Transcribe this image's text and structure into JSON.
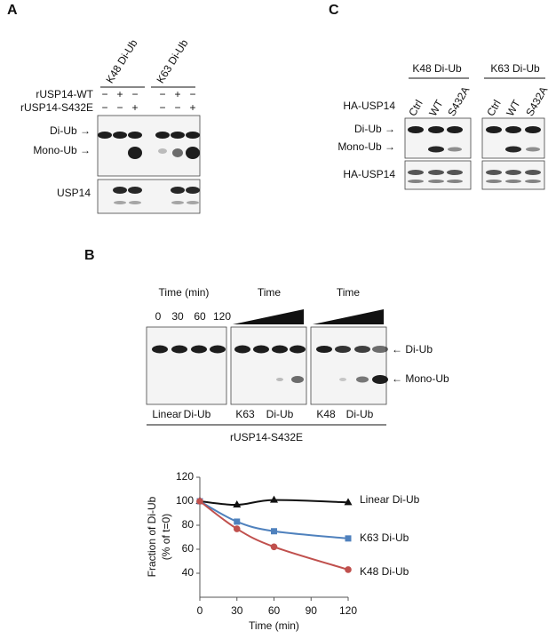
{
  "panel_a": {
    "label": "A",
    "columns": [
      "K48 Di-Ub",
      "K63 Di-Ub"
    ],
    "rows": [
      {
        "name": "rUSP14-WT",
        "signs": [
          "−",
          "+",
          "−",
          "−",
          "+",
          "−"
        ]
      },
      {
        "name": "rUSP14-S432E",
        "signs": [
          "−",
          "−",
          "+",
          "−",
          "−",
          "+"
        ]
      }
    ],
    "blot_labels": [
      "Di-Ub →",
      "Mono-Ub →",
      "USP14"
    ]
  },
  "panel_c": {
    "label": "C",
    "columns": [
      "K48 Di-Ub",
      "K63 Di-Ub"
    ],
    "row_label": "HA-USP14",
    "lanes": [
      "Ctrl",
      "WT",
      "S432A"
    ],
    "blot_labels": [
      "Di-Ub →",
      "Mono-Ub →",
      "HA-USP14"
    ]
  },
  "panel_b": {
    "label": "B",
    "time_header": "Time (min)",
    "times": [
      "0",
      "30",
      "60",
      "120"
    ],
    "time_labels": [
      "Time",
      "Time"
    ],
    "band_labels": [
      "← Di-Ub",
      "← Mono-Ub"
    ],
    "blot_names": [
      "Linear",
      "Di-Ub",
      "K63",
      "Di-Ub",
      "K48",
      "Di-Ub"
    ],
    "bottom_label": "rUSP14-S432E"
  },
  "chart_data": {
    "type": "line",
    "x_label": "Time (min)",
    "y_label": [
      "Fraction of Di-Ub",
      "(% of t=0)"
    ],
    "x": [
      0,
      30,
      60,
      120
    ],
    "xlim": [
      0,
      120
    ],
    "xticks": [
      0,
      30,
      60,
      90,
      120
    ],
    "ylim": [
      20,
      120
    ],
    "yticks": [
      40,
      60,
      80,
      100,
      120
    ],
    "series": [
      {
        "name": "Linear Di-Ub",
        "color": "#111111",
        "marker": "triangle",
        "values": [
          100,
          97,
          101,
          99
        ]
      },
      {
        "name": "K63 Di-Ub",
        "color": "#4f81bd",
        "marker": "square",
        "values": [
          100,
          83,
          75,
          69
        ]
      },
      {
        "name": "K48 Di-Ub",
        "color": "#c0504d",
        "marker": "circle",
        "values": [
          100,
          77,
          62,
          43
        ]
      }
    ]
  }
}
